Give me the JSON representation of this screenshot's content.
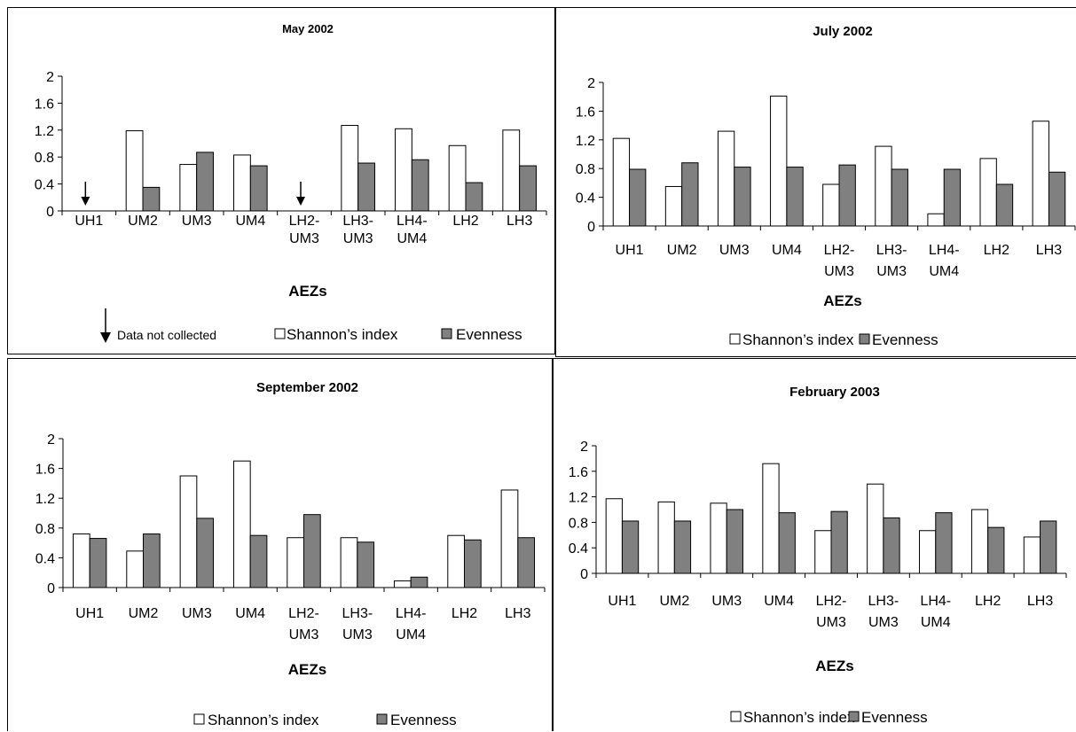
{
  "colors": {
    "shannon": "#ffffff",
    "evenness": "#808080",
    "stroke": "#000000"
  },
  "legend": {
    "shannon": "Shannon’s index",
    "evenness": "Evenness",
    "note": "Data not collected"
  },
  "chart_data": [
    {
      "type": "bar",
      "title": "May 2002",
      "xlabel": "AEZs",
      "ylim": [
        0,
        2
      ],
      "yticks": [
        "0",
        "0.4",
        "0.8",
        "1.2",
        "1.6",
        "2"
      ],
      "categories": [
        "UH1",
        "UM2",
        "UM3",
        "UM4",
        "LH2-UM3",
        "LH3-UM3",
        "LH4-UM4",
        "LH2",
        "LH3"
      ],
      "series": [
        {
          "name": "Shannon’s index",
          "values": [
            null,
            1.19,
            0.69,
            0.83,
            null,
            1.27,
            1.22,
            0.97,
            1.2
          ]
        },
        {
          "name": "Evenness",
          "values": [
            null,
            0.35,
            0.87,
            0.67,
            null,
            0.71,
            0.76,
            0.42,
            0.67
          ]
        }
      ],
      "annotations": [
        "Data not collected"
      ],
      "missing": [
        "UH1",
        "LH2-UM3"
      ]
    },
    {
      "type": "bar",
      "title": "July 2002",
      "xlabel": "AEZs",
      "ylim": [
        0,
        2
      ],
      "yticks": [
        "0",
        "0.4",
        "0.8",
        "1.2",
        "1.6",
        "2"
      ],
      "categories": [
        "UH1",
        "UM2",
        "UM3",
        "UM4",
        "LH2-UM3",
        "LH3-UM3",
        "LH4-UM4",
        "LH2",
        "LH3"
      ],
      "series": [
        {
          "name": "Shannon’s index",
          "values": [
            1.22,
            0.55,
            1.32,
            1.81,
            0.58,
            1.11,
            0.17,
            0.94,
            1.46
          ]
        },
        {
          "name": "Evenness",
          "values": [
            0.79,
            0.88,
            0.82,
            0.82,
            0.85,
            0.79,
            0.79,
            0.58,
            0.75
          ]
        }
      ]
    },
    {
      "type": "bar",
      "title": "September 2002",
      "xlabel": "AEZs",
      "ylim": [
        0,
        2
      ],
      "yticks": [
        "0",
        "0.4",
        "0.8",
        "1.2",
        "1.6",
        "2"
      ],
      "categories": [
        "UH1",
        "UM2",
        "UM3",
        "UM4",
        "LH2-UM3",
        "LH3-UM3",
        "LH4-UM4",
        "LH2",
        "LH3"
      ],
      "series": [
        {
          "name": "Shannon’s index",
          "values": [
            0.72,
            0.49,
            1.5,
            1.7,
            0.67,
            0.67,
            0.09,
            0.7,
            1.31
          ]
        },
        {
          "name": "Evenness",
          "values": [
            0.66,
            0.72,
            0.93,
            0.7,
            0.98,
            0.61,
            0.14,
            0.64,
            0.67
          ]
        }
      ]
    },
    {
      "type": "bar",
      "title": "February 2003",
      "xlabel": "AEZs",
      "ylim": [
        0,
        2
      ],
      "yticks": [
        "0",
        "0.4",
        "0.8",
        "1.2",
        "1.6",
        "2"
      ],
      "categories": [
        "UH1",
        "UM2",
        "UM3",
        "UM4",
        "LH2-UM3",
        "LH3-UM3",
        "LH4-UM4",
        "LH2",
        "LH3"
      ],
      "series": [
        {
          "name": "Shannon’s index",
          "values": [
            1.17,
            1.12,
            1.1,
            1.72,
            0.67,
            1.4,
            0.67,
            1.0,
            0.57
          ]
        },
        {
          "name": "Evenness",
          "values": [
            0.82,
            0.82,
            1.0,
            0.95,
            0.97,
            0.87,
            0.95,
            0.72,
            0.82
          ]
        }
      ]
    }
  ]
}
